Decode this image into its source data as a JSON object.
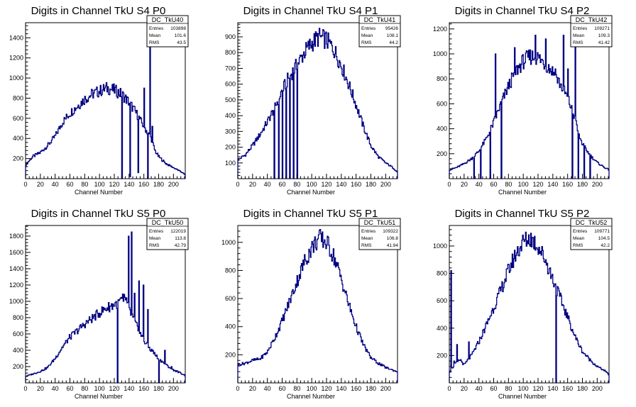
{
  "panel_colors": {
    "line": "#000080",
    "frame": "#000000",
    "background": "#ffffff"
  },
  "chart_data": [
    {
      "type": "histogram",
      "title": "Digits in Channel TkU S4 P0",
      "xlabel": "Channel Number",
      "ylabel": "",
      "xlim": [
        0,
        216
      ],
      "ylim": [
        0,
        1550
      ],
      "xticks": [
        0,
        20,
        40,
        60,
        80,
        100,
        120,
        140,
        160,
        180,
        200
      ],
      "yticks": [
        200,
        400,
        600,
        800,
        1000,
        1200,
        1400
      ],
      "stats": {
        "name": "DC_TkU40",
        "entries": "103898",
        "mean": "101.6",
        "rms": "43.5"
      },
      "series": [
        {
          "profile": [
            [
              0,
              130
            ],
            [
              5,
              180
            ],
            [
              10,
              220
            ],
            [
              20,
              260
            ],
            [
              30,
              330
            ],
            [
              40,
              420
            ],
            [
              50,
              560
            ],
            [
              60,
              650
            ],
            [
              70,
              720
            ],
            [
              80,
              790
            ],
            [
              90,
              840
            ],
            [
              100,
              870
            ],
            [
              110,
              900
            ],
            [
              120,
              880
            ],
            [
              130,
              840
            ],
            [
              140,
              760
            ],
            [
              150,
              650
            ],
            [
              160,
              520
            ],
            [
              170,
              400
            ],
            [
              175,
              280
            ],
            [
              180,
              220
            ],
            [
              190,
              150
            ],
            [
              200,
              110
            ],
            [
              210,
              70
            ],
            [
              216,
              40
            ]
          ],
          "spikes": [
            [
              130,
              0
            ],
            [
              141,
              20
            ],
            [
              152,
              60
            ],
            [
              160,
              900
            ],
            [
              165,
              0
            ],
            [
              168,
              1500
            ],
            [
              171,
              520
            ]
          ]
        }
      ]
    },
    {
      "type": "histogram",
      "title": "Digits in Channel TkU S4 P1",
      "xlabel": "Channel Number",
      "ylabel": "",
      "xlim": [
        0,
        216
      ],
      "ylim": [
        0,
        990
      ],
      "xticks": [
        0,
        20,
        40,
        60,
        80,
        100,
        120,
        140,
        160,
        180,
        200
      ],
      "yticks": [
        100,
        200,
        300,
        400,
        500,
        600,
        700,
        800,
        900
      ],
      "stats": {
        "name": "DC_TkU41",
        "entries": "95426",
        "mean": "108.1",
        "rms": "44.2"
      },
      "series": [
        {
          "profile": [
            [
              0,
              120
            ],
            [
              10,
              150
            ],
            [
              20,
              210
            ],
            [
              30,
              280
            ],
            [
              40,
              360
            ],
            [
              50,
              450
            ],
            [
              60,
              560
            ],
            [
              70,
              650
            ],
            [
              80,
              720
            ],
            [
              90,
              800
            ],
            [
              100,
              860
            ],
            [
              110,
              900
            ],
            [
              120,
              880
            ],
            [
              130,
              820
            ],
            [
              140,
              720
            ],
            [
              150,
              600
            ],
            [
              160,
              470
            ],
            [
              170,
              330
            ],
            [
              180,
              210
            ],
            [
              190,
              140
            ],
            [
              200,
              100
            ],
            [
              210,
              70
            ],
            [
              216,
              40
            ]
          ],
          "spikes": [
            [
              49,
              0
            ],
            [
              55,
              0
            ],
            [
              60,
              0
            ],
            [
              65,
              0
            ],
            [
              70,
              0
            ],
            [
              75,
              0
            ],
            [
              80,
              0
            ]
          ]
        }
      ]
    },
    {
      "type": "histogram",
      "title": "Digits in Channel TkU S4 P2",
      "xlabel": "Channel Number",
      "ylabel": "",
      "xlim": [
        0,
        216
      ],
      "ylim": [
        0,
        1250
      ],
      "xticks": [
        0,
        20,
        40,
        60,
        80,
        100,
        120,
        140,
        160,
        180,
        200
      ],
      "yticks": [
        200,
        400,
        600,
        800,
        1000,
        1200
      ],
      "stats": {
        "name": "DC_TkU42",
        "entries": "109271",
        "mean": "109.3",
        "rms": "41.42"
      },
      "series": [
        {
          "profile": [
            [
              0,
              70
            ],
            [
              10,
              90
            ],
            [
              20,
              120
            ],
            [
              30,
              160
            ],
            [
              40,
              220
            ],
            [
              50,
              320
            ],
            [
              60,
              450
            ],
            [
              70,
              600
            ],
            [
              80,
              740
            ],
            [
              90,
              860
            ],
            [
              100,
              940
            ],
            [
              110,
              980
            ],
            [
              120,
              970
            ],
            [
              130,
              920
            ],
            [
              140,
              860
            ],
            [
              150,
              760
            ],
            [
              160,
              650
            ],
            [
              170,
              480
            ],
            [
              175,
              350
            ],
            [
              180,
              280
            ],
            [
              190,
              190
            ],
            [
              200,
              130
            ],
            [
              210,
              90
            ],
            [
              216,
              70
            ]
          ],
          "spikes": [
            [
              33,
              0
            ],
            [
              42,
              0
            ],
            [
              55,
              0
            ],
            [
              62,
              1000
            ],
            [
              70,
              0
            ],
            [
              88,
              1050
            ],
            [
              116,
              1150
            ],
            [
              130,
              1120
            ],
            [
              143,
              880
            ],
            [
              154,
              1150
            ],
            [
              160,
              880
            ],
            [
              166,
              0
            ],
            [
              170,
              1170
            ],
            [
              174,
              0
            ],
            [
              182,
              0
            ],
            [
              190,
              0
            ]
          ]
        }
      ]
    },
    {
      "type": "histogram",
      "title": "Digits in Channel TkU S5 P0",
      "xlabel": "Channel Number",
      "ylabel": "",
      "xlim": [
        0,
        216
      ],
      "ylim": [
        0,
        1930
      ],
      "xticks": [
        0,
        20,
        40,
        60,
        80,
        100,
        120,
        140,
        160,
        180,
        200
      ],
      "yticks": [
        200,
        400,
        600,
        800,
        1000,
        1200,
        1400,
        1600,
        1800
      ],
      "stats": {
        "name": "DC_TkU50",
        "entries": "122019",
        "mean": "113.8",
        "rms": "42.79"
      },
      "series": [
        {
          "profile": [
            [
              0,
              80
            ],
            [
              10,
              110
            ],
            [
              20,
              140
            ],
            [
              30,
              190
            ],
            [
              40,
              300
            ],
            [
              50,
              440
            ],
            [
              60,
              560
            ],
            [
              70,
              640
            ],
            [
              80,
              720
            ],
            [
              90,
              790
            ],
            [
              100,
              860
            ],
            [
              110,
              920
            ],
            [
              120,
              960
            ],
            [
              128,
              1000
            ],
            [
              135,
              1050
            ],
            [
              140,
              900
            ],
            [
              150,
              700
            ],
            [
              160,
              520
            ],
            [
              170,
              400
            ],
            [
              180,
              300
            ],
            [
              190,
              220
            ],
            [
              200,
              160
            ],
            [
              210,
              120
            ],
            [
              216,
              90
            ]
          ],
          "spikes": [
            [
              124,
              0
            ],
            [
              132,
              1000
            ],
            [
              139,
              1800
            ],
            [
              143,
              1850
            ],
            [
              147,
              1100
            ],
            [
              153,
              1250
            ],
            [
              159,
              1200
            ],
            [
              165,
              900
            ],
            [
              172,
              400
            ],
            [
              180,
              0
            ],
            [
              188,
              400
            ],
            [
              197,
              200
            ]
          ]
        }
      ]
    },
    {
      "type": "histogram",
      "title": "Digits in Channel TkU S5 P1",
      "xlabel": "Channel Number",
      "ylabel": "",
      "xlim": [
        0,
        216
      ],
      "ylim": [
        0,
        1120
      ],
      "xticks": [
        0,
        20,
        40,
        60,
        80,
        100,
        120,
        140,
        160,
        180,
        200
      ],
      "yticks": [
        200,
        400,
        600,
        800,
        1000
      ],
      "stats": {
        "name": "DC_TkU51",
        "entries": "109322",
        "mean": "106.8",
        "rms": "41.94"
      },
      "series": [
        {
          "profile": [
            [
              0,
              130
            ],
            [
              10,
              140
            ],
            [
              20,
              160
            ],
            [
              30,
              170
            ],
            [
              40,
              220
            ],
            [
              50,
              320
            ],
            [
              60,
              440
            ],
            [
              70,
              580
            ],
            [
              80,
              720
            ],
            [
              90,
              860
            ],
            [
              100,
              960
            ],
            [
              110,
              1030
            ],
            [
              120,
              1000
            ],
            [
              130,
              900
            ],
            [
              140,
              740
            ],
            [
              150,
              560
            ],
            [
              160,
              400
            ],
            [
              170,
              270
            ],
            [
              180,
              180
            ],
            [
              190,
              140
            ],
            [
              200,
              110
            ],
            [
              210,
              90
            ],
            [
              216,
              80
            ]
          ],
          "spikes": []
        }
      ]
    },
    {
      "type": "histogram",
      "title": "Digits in Channel TkU S5 P2",
      "xlabel": "Channel Number",
      "ylabel": "",
      "xlim": [
        0,
        216
      ],
      "ylim": [
        0,
        1150
      ],
      "xticks": [
        0,
        20,
        40,
        60,
        80,
        100,
        120,
        140,
        160,
        180,
        200
      ],
      "yticks": [
        200,
        400,
        600,
        800,
        1000
      ],
      "stats": {
        "name": "DC_TkU52",
        "entries": "109771",
        "mean": "104.5",
        "rms": "42.2"
      },
      "series": [
        {
          "profile": [
            [
              0,
              80
            ],
            [
              8,
              140
            ],
            [
              15,
              170
            ],
            [
              20,
              130
            ],
            [
              30,
              200
            ],
            [
              40,
              300
            ],
            [
              50,
              420
            ],
            [
              60,
              550
            ],
            [
              70,
              680
            ],
            [
              80,
              820
            ],
            [
              90,
              940
            ],
            [
              100,
              1030
            ],
            [
              110,
              1060
            ],
            [
              120,
              1000
            ],
            [
              130,
              900
            ],
            [
              140,
              760
            ],
            [
              150,
              620
            ],
            [
              160,
              480
            ],
            [
              170,
              340
            ],
            [
              180,
              230
            ],
            [
              190,
              170
            ],
            [
              200,
              120
            ],
            [
              210,
              90
            ],
            [
              216,
              60
            ]
          ],
          "spikes": [
            [
              2,
              820
            ],
            [
              6,
              160
            ],
            [
              10,
              280
            ],
            [
              26,
              300
            ],
            [
              144,
              0
            ]
          ]
        }
      ]
    }
  ]
}
